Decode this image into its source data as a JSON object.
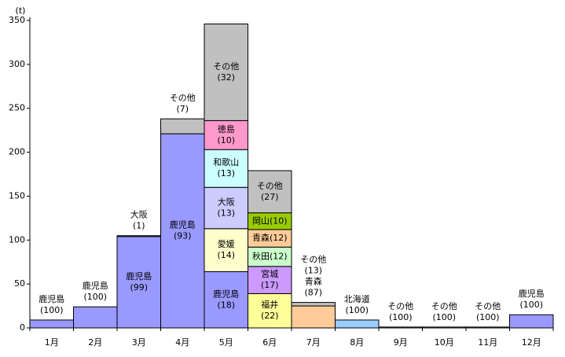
{
  "chart_data": {
    "type": "bar",
    "stacked": true,
    "unit_label": "(t)",
    "ylim": [
      0,
      350
    ],
    "yticks": [
      0,
      50,
      100,
      150,
      200,
      250,
      300,
      350
    ],
    "grid": false,
    "categories": [
      "1月",
      "2月",
      "3月",
      "4月",
      "5月",
      "6月",
      "7月",
      "8月",
      "9月",
      "10月",
      "11月",
      "12月"
    ],
    "months": [
      {
        "segments": [
          {
            "name": "鹿児島",
            "share": "(100)",
            "value": 9,
            "color": "#9999ff"
          }
        ],
        "annotation": [
          "鹿児島",
          "(100)"
        ]
      },
      {
        "segments": [
          {
            "name": "鹿児島",
            "share": "(100)",
            "value": 24,
            "color": "#9999ff"
          }
        ],
        "annotation": [
          "鹿児島",
          "(100)"
        ]
      },
      {
        "segments": [
          {
            "name": "鹿児島",
            "share": "(99)",
            "value": 104,
            "color": "#9999ff",
            "label": [
              "鹿児島",
              "(99)"
            ]
          },
          {
            "name": "大阪",
            "share": "(1)",
            "value": 1,
            "color": "#ccccff"
          }
        ],
        "annotation": [
          "大阪",
          "(1)"
        ]
      },
      {
        "segments": [
          {
            "name": "鹿児島",
            "share": "(93)",
            "value": 221,
            "color": "#9999ff",
            "label": [
              "鹿児島",
              "(93)"
            ]
          },
          {
            "name": "その他",
            "share": "(7)",
            "value": 17,
            "color": "#c0c0c0"
          }
        ],
        "annotation": [
          "その他",
          "(7)"
        ]
      },
      {
        "segments": [
          {
            "name": "鹿児島",
            "share": "(18)",
            "value": 64,
            "color": "#9999ff",
            "label": [
              "鹿児島",
              "(18)"
            ]
          },
          {
            "name": "愛媛",
            "share": "(14)",
            "value": 49,
            "color": "#ffffcc",
            "label": [
              "愛媛",
              "(14)"
            ]
          },
          {
            "name": "大阪",
            "share": "(13)",
            "value": 47,
            "color": "#ccccff",
            "label": [
              "大阪",
              "(13)"
            ]
          },
          {
            "name": "和歌山",
            "share": "(13)",
            "value": 43,
            "color": "#ccffff",
            "label": [
              "和歌山",
              "(13)"
            ]
          },
          {
            "name": "徳島",
            "share": "(10)",
            "value": 33,
            "color": "#ff99cc",
            "label": [
              "徳島",
              "(10)"
            ]
          },
          {
            "name": "その他",
            "share": "(32)",
            "value": 110,
            "color": "#c0c0c0",
            "label": [
              "その他",
              "(32)"
            ]
          }
        ],
        "annotation": []
      },
      {
        "segments": [
          {
            "name": "福井",
            "share": "(22)",
            "value": 39,
            "color": "#ffff99",
            "label": [
              "福井",
              "(22)"
            ]
          },
          {
            "name": "宮城",
            "share": "(17)",
            "value": 31,
            "color": "#cc99ff",
            "label": [
              "宮城",
              "(17)"
            ]
          },
          {
            "name": "秋田",
            "share": "(12)",
            "value": 22,
            "color": "#ccffcc",
            "label": [
              "秋田(12)"
            ]
          },
          {
            "name": "青森",
            "share": "(12)",
            "value": 20,
            "color": "#ffcc99",
            "label": [
              "青森(12)"
            ]
          },
          {
            "name": "岡山",
            "share": "(10)",
            "value": 19,
            "color": "#99cc00",
            "label": [
              "岡山(10)"
            ]
          },
          {
            "name": "その他",
            "share": "(27)",
            "value": 48,
            "color": "#c0c0c0",
            "label": [
              "その他",
              "(27)"
            ]
          }
        ],
        "annotation": []
      },
      {
        "segments": [
          {
            "name": "青森",
            "share": "(87)",
            "value": 25,
            "color": "#ffcc99"
          },
          {
            "name": "その他",
            "share": "(13)",
            "value": 4,
            "color": "#c0c0c0"
          }
        ],
        "annotation": [
          "その他",
          "(13)",
          "青森",
          "(87)"
        ]
      },
      {
        "segments": [
          {
            "name": "北海道",
            "share": "(100)",
            "value": 9,
            "color": "#99ccff"
          }
        ],
        "annotation": [
          "北海道",
          "(100)"
        ]
      },
      {
        "segments": [
          {
            "name": "その他",
            "share": "(100)",
            "value": 1,
            "color": "#c0c0c0"
          }
        ],
        "annotation": [
          "その他",
          "(100)"
        ]
      },
      {
        "segments": [
          {
            "name": "その他",
            "share": "(100)",
            "value": 1,
            "color": "#c0c0c0"
          }
        ],
        "annotation": [
          "その他",
          "(100)"
        ]
      },
      {
        "segments": [
          {
            "name": "その他",
            "share": "(100)",
            "value": 1,
            "color": "#c0c0c0"
          }
        ],
        "annotation": [
          "その他",
          "(100)"
        ]
      },
      {
        "segments": [
          {
            "name": "鹿児島",
            "share": "(100)",
            "value": 15,
            "color": "#9999ff"
          }
        ],
        "annotation": [
          "鹿児島",
          "(100)"
        ]
      }
    ]
  }
}
